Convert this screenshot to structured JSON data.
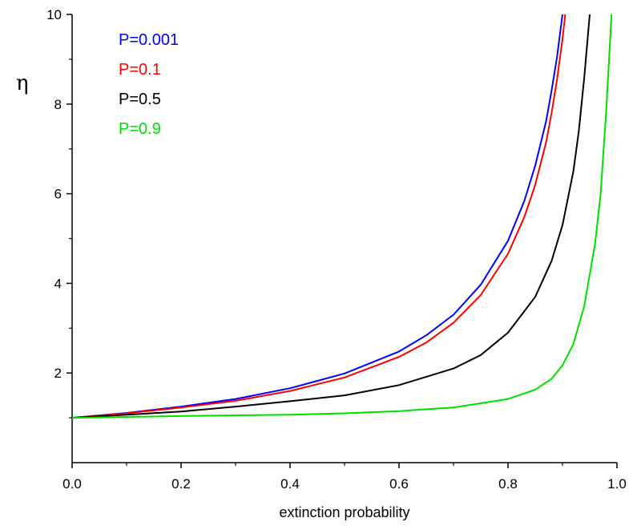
{
  "chart_data": {
    "type": "line",
    "title": "",
    "xlabel": "extinction probability",
    "ylabel": "η",
    "xlim": [
      0.0,
      1.0
    ],
    "ylim": [
      0,
      10
    ],
    "grid": false,
    "legend_position": "top-left",
    "x_ticks": [
      {
        "value": 0.0,
        "label": "0.0"
      },
      {
        "value": 0.2,
        "label": "0.2"
      },
      {
        "value": 0.4,
        "label": "0.4"
      },
      {
        "value": 0.6,
        "label": "0.6"
      },
      {
        "value": 0.8,
        "label": "0.8"
      },
      {
        "value": 1.0,
        "label": "1.0"
      }
    ],
    "y_ticks": [
      {
        "value": 2,
        "label": "2"
      },
      {
        "value": 4,
        "label": "4"
      },
      {
        "value": 6,
        "label": "6"
      },
      {
        "value": 8,
        "label": "8"
      },
      {
        "value": 10,
        "label": "10"
      }
    ],
    "series": [
      {
        "name": "P=0.001",
        "color": "#0000ff",
        "points": [
          [
            0.0,
            1.0
          ],
          [
            0.1,
            1.11
          ],
          [
            0.2,
            1.25
          ],
          [
            0.3,
            1.42
          ],
          [
            0.4,
            1.66
          ],
          [
            0.5,
            1.99
          ],
          [
            0.6,
            2.48
          ],
          [
            0.65,
            2.84
          ],
          [
            0.7,
            3.3
          ],
          [
            0.75,
            3.97
          ],
          [
            0.8,
            4.95
          ],
          [
            0.83,
            5.84
          ],
          [
            0.85,
            6.63
          ],
          [
            0.87,
            7.62
          ],
          [
            0.88,
            8.3
          ],
          [
            0.89,
            9.05
          ],
          [
            0.9,
            10.0
          ]
        ]
      },
      {
        "name": "P=0.1",
        "color": "#ff0000",
        "points": [
          [
            0.0,
            1.0
          ],
          [
            0.1,
            1.1
          ],
          [
            0.2,
            1.23
          ],
          [
            0.3,
            1.38
          ],
          [
            0.4,
            1.6
          ],
          [
            0.5,
            1.9
          ],
          [
            0.6,
            2.36
          ],
          [
            0.65,
            2.68
          ],
          [
            0.7,
            3.12
          ],
          [
            0.75,
            3.74
          ],
          [
            0.8,
            4.66
          ],
          [
            0.83,
            5.48
          ],
          [
            0.85,
            6.2
          ],
          [
            0.87,
            7.15
          ],
          [
            0.88,
            7.8
          ],
          [
            0.89,
            8.55
          ],
          [
            0.9,
            9.45
          ],
          [
            0.905,
            10.0
          ]
        ]
      },
      {
        "name": "P=0.5",
        "color": "#000000",
        "points": [
          [
            0.0,
            1.0
          ],
          [
            0.1,
            1.07
          ],
          [
            0.2,
            1.14
          ],
          [
            0.3,
            1.25
          ],
          [
            0.4,
            1.37
          ],
          [
            0.5,
            1.5
          ],
          [
            0.6,
            1.73
          ],
          [
            0.7,
            2.1
          ],
          [
            0.75,
            2.4
          ],
          [
            0.8,
            2.9
          ],
          [
            0.85,
            3.7
          ],
          [
            0.88,
            4.5
          ],
          [
            0.9,
            5.3
          ],
          [
            0.92,
            6.5
          ],
          [
            0.93,
            7.4
          ],
          [
            0.94,
            8.6
          ],
          [
            0.95,
            10.0
          ]
        ]
      },
      {
        "name": "P=0.9",
        "color": "#00e000",
        "points": [
          [
            0.0,
            1.0
          ],
          [
            0.2,
            1.04
          ],
          [
            0.4,
            1.07
          ],
          [
            0.5,
            1.1
          ],
          [
            0.6,
            1.15
          ],
          [
            0.7,
            1.23
          ],
          [
            0.8,
            1.42
          ],
          [
            0.85,
            1.63
          ],
          [
            0.88,
            1.87
          ],
          [
            0.9,
            2.17
          ],
          [
            0.92,
            2.65
          ],
          [
            0.94,
            3.5
          ],
          [
            0.96,
            4.9
          ],
          [
            0.97,
            6.0
          ],
          [
            0.98,
            7.8
          ],
          [
            0.99,
            10.0
          ]
        ]
      }
    ]
  }
}
